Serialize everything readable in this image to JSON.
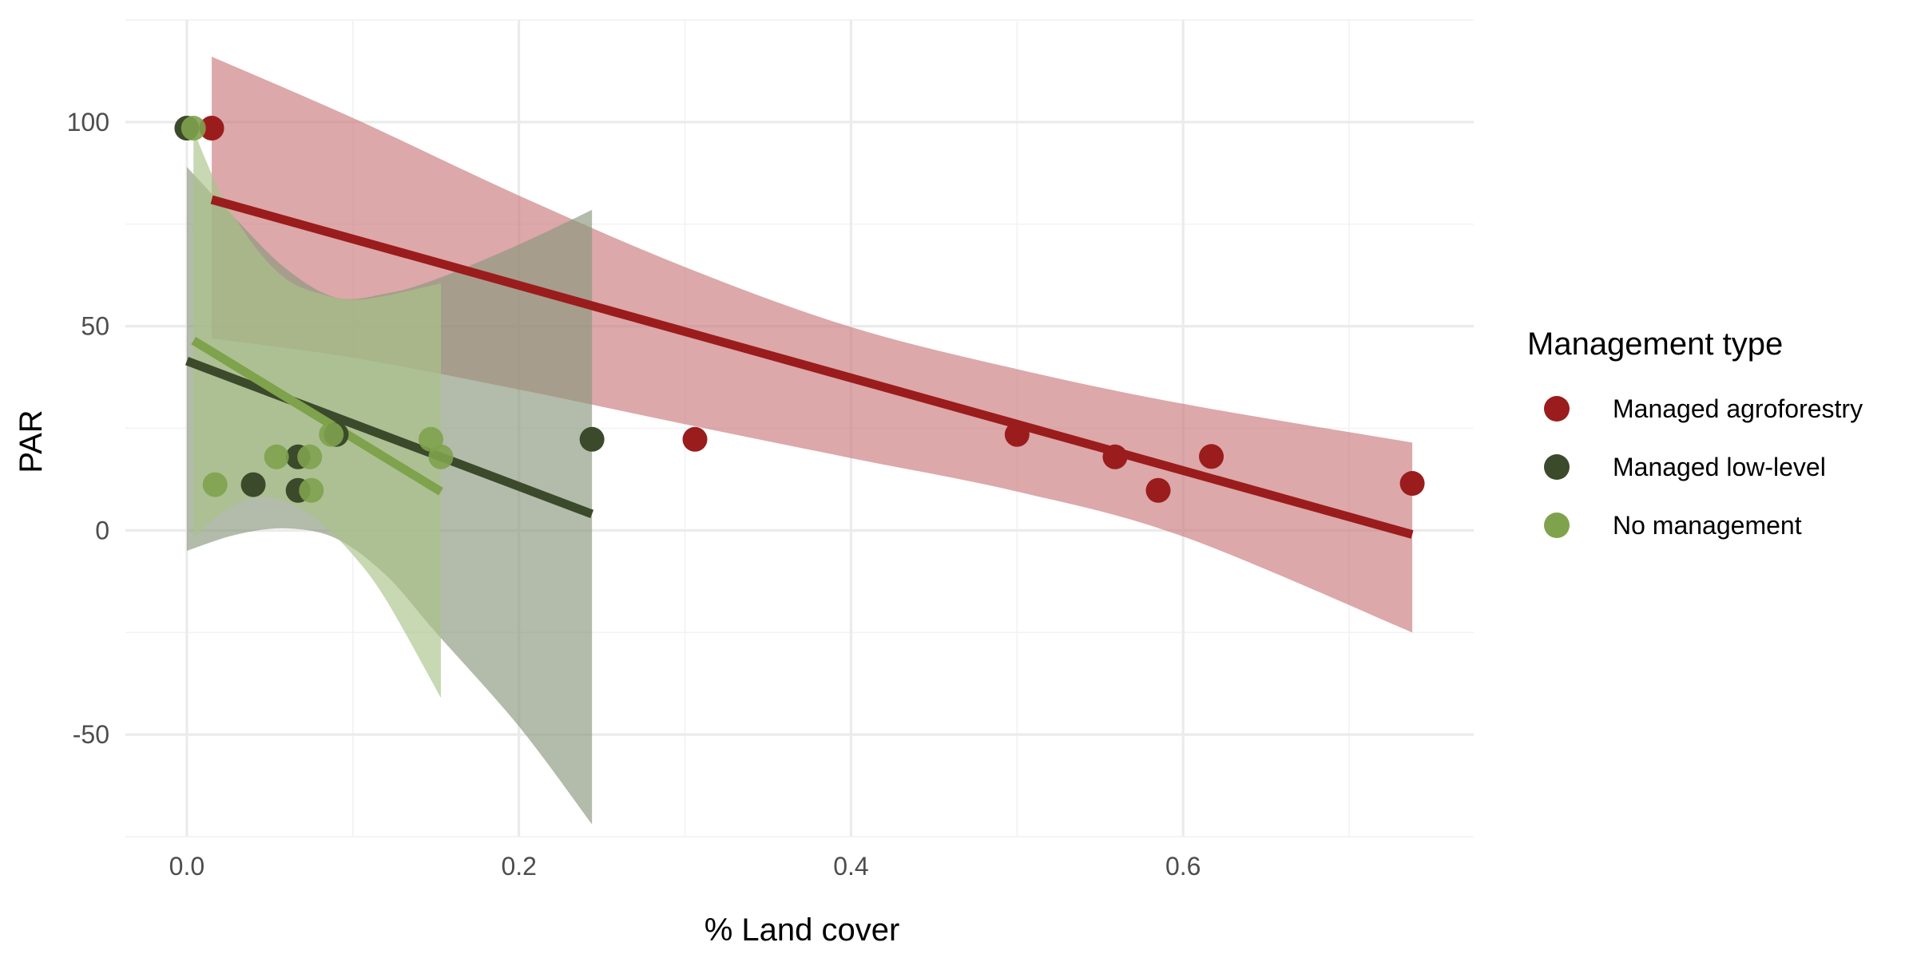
{
  "chart_data": {
    "type": "scatter",
    "xlabel": "% Land cover",
    "ylabel": "PAR",
    "xlim": [
      -0.037,
      0.775
    ],
    "ylim": [
      -75,
      125
    ],
    "x_ticks": [
      "0.0",
      "0.2",
      "0.4",
      "0.6"
    ],
    "x_tick_values": [
      0.0,
      0.2,
      0.4,
      0.6
    ],
    "y_ticks": [
      "-50",
      "0",
      "50",
      "100"
    ],
    "y_tick_values": [
      -50,
      0,
      50,
      100
    ],
    "grid": true,
    "legend": {
      "title": "Management type",
      "placement": "right"
    },
    "series": [
      {
        "name": "Managed agroforestry",
        "color": "#9b1c1c",
        "band_color": "#c97a7d",
        "points": [
          [
            0.015,
            98.5
          ],
          [
            0.306,
            22.3
          ],
          [
            0.5,
            23.5
          ],
          [
            0.559,
            18.0
          ],
          [
            0.585,
            9.8
          ],
          [
            0.617,
            18.1
          ],
          [
            0.738,
            11.5
          ]
        ],
        "fit": [
          [
            0.015,
            81.0
          ],
          [
            0.738,
            -1.0
          ]
        ],
        "band_upper": [
          [
            0.015,
            116
          ],
          [
            0.1,
            101
          ],
          [
            0.2,
            82
          ],
          [
            0.3,
            64.5
          ],
          [
            0.4,
            49.8
          ],
          [
            0.5,
            39.5
          ],
          [
            0.6,
            31.0
          ],
          [
            0.738,
            21.5
          ]
        ],
        "band_lower": [
          [
            0.015,
            47.0
          ],
          [
            0.1,
            42.3
          ],
          [
            0.2,
            34.5
          ],
          [
            0.3,
            26.0
          ],
          [
            0.4,
            17.7
          ],
          [
            0.5,
            9.5
          ],
          [
            0.6,
            -1.5
          ],
          [
            0.738,
            -25.0
          ]
        ]
      },
      {
        "name": "Managed low-level",
        "color": "#3b4a2a",
        "band_color": "#8a977c",
        "points": [
          [
            0.0,
            98.5
          ],
          [
            0.04,
            11.2
          ],
          [
            0.067,
            18.0
          ],
          [
            0.067,
            9.8
          ],
          [
            0.09,
            23.5
          ],
          [
            0.244,
            22.3
          ]
        ],
        "fit": [
          [
            0.0,
            41.5
          ],
          [
            0.244,
            4.0
          ]
        ],
        "band_upper": [
          [
            0.0,
            89
          ],
          [
            0.03,
            76
          ],
          [
            0.06,
            64
          ],
          [
            0.09,
            57
          ],
          [
            0.12,
            58
          ],
          [
            0.15,
            61.5
          ],
          [
            0.2,
            70
          ],
          [
            0.244,
            78.5
          ]
        ],
        "band_lower": [
          [
            0.0,
            -5
          ],
          [
            0.03,
            -1
          ],
          [
            0.06,
            0.5
          ],
          [
            0.09,
            -2
          ],
          [
            0.12,
            -11
          ],
          [
            0.15,
            -25
          ],
          [
            0.2,
            -48
          ],
          [
            0.244,
            -72
          ]
        ]
      },
      {
        "name": "No management",
        "color": "#7fa24c",
        "band_color": "#a9c389",
        "points": [
          [
            0.004,
            98.5
          ],
          [
            0.017,
            11.2
          ],
          [
            0.054,
            18.0
          ],
          [
            0.074,
            18.0
          ],
          [
            0.075,
            9.8
          ],
          [
            0.087,
            23.5
          ],
          [
            0.147,
            22.3
          ],
          [
            0.153,
            18.0
          ]
        ],
        "fit": [
          [
            0.004,
            46.5
          ],
          [
            0.153,
            9.5
          ]
        ],
        "band_upper": [
          [
            0.004,
            98
          ],
          [
            0.02,
            83
          ],
          [
            0.04,
            70
          ],
          [
            0.06,
            61.5
          ],
          [
            0.08,
            58
          ],
          [
            0.1,
            56.5
          ],
          [
            0.12,
            57.5
          ],
          [
            0.153,
            60.5
          ]
        ],
        "band_lower": [
          [
            0.004,
            -2
          ],
          [
            0.02,
            4
          ],
          [
            0.04,
            8
          ],
          [
            0.06,
            7
          ],
          [
            0.08,
            2
          ],
          [
            0.1,
            -6
          ],
          [
            0.12,
            -17
          ],
          [
            0.153,
            -41
          ]
        ]
      }
    ]
  }
}
